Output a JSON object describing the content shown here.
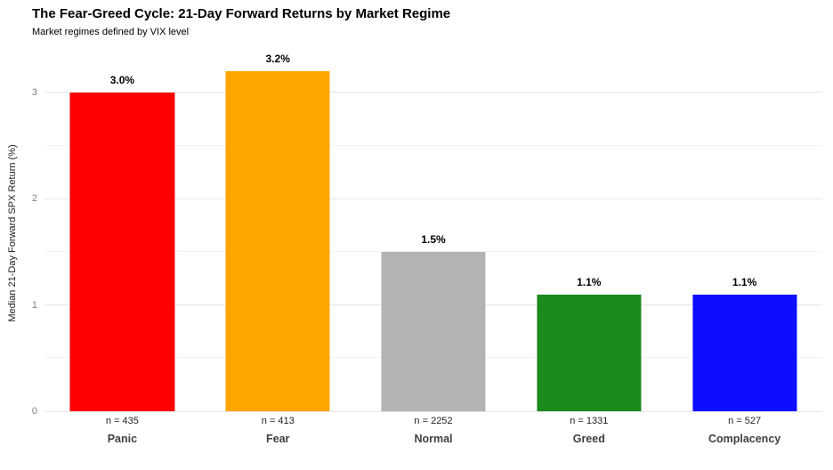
{
  "chart_data": {
    "type": "bar",
    "title": "The Fear-Greed Cycle: 21-Day Forward Returns by Market Regime",
    "subtitle": "Market regimes defined by VIX level",
    "xlabel": "",
    "ylabel": "Median 21-Day Forward SPX Return (%)",
    "categories": [
      "Panic",
      "Fear",
      "Normal",
      "Greed",
      "Complacency"
    ],
    "values": [
      3.0,
      3.2,
      1.5,
      1.1,
      1.1
    ],
    "value_labels": [
      "3.0%",
      "3.2%",
      "1.5%",
      "1.1%",
      "1.1%"
    ],
    "sample_sizes": [
      "n = 435",
      "n = 413",
      "n = 2252",
      "n = 1331",
      "n = 527"
    ],
    "bar_colors": [
      "#fe0000",
      "#ffa500",
      "#b3b3b3",
      "#1a8a1a",
      "#0d0dff"
    ],
    "yticks": [
      0,
      1,
      2,
      3
    ],
    "yticks_minor": [
      0.5,
      1.5,
      2.5
    ],
    "ylim": [
      0,
      3.35
    ],
    "grid": "horizontal",
    "legend": "none",
    "background": "#ffffff",
    "grid_color": "#e5e5e5"
  }
}
